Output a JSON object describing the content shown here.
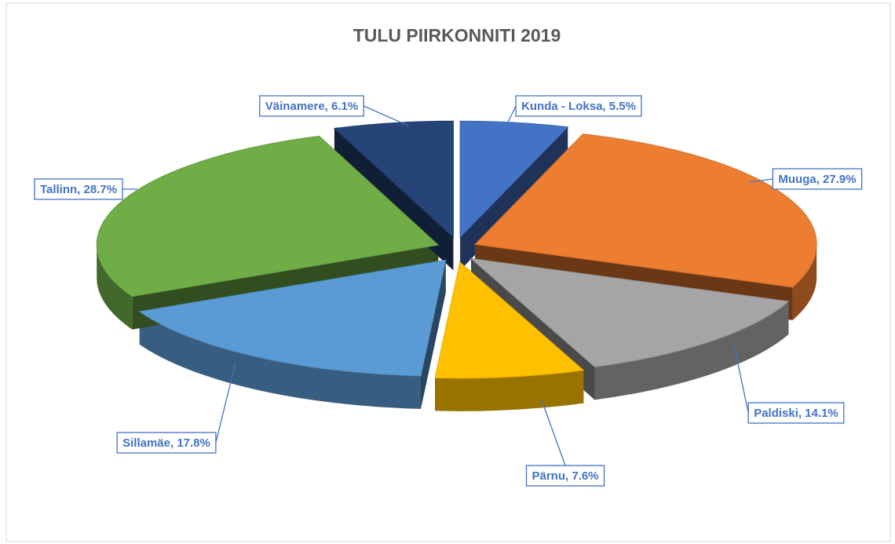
{
  "chart_data": {
    "type": "pie",
    "title": "TULU PIIRKONNITI 2019",
    "categories": [
      "Kunda - Loksa",
      "Muuga",
      "Paldiski",
      "Pärnu",
      "Sillamäe",
      "Tallinn",
      "Väinamere"
    ],
    "values": [
      5.5,
      27.9,
      14.1,
      7.6,
      17.8,
      28.7,
      6.1
    ],
    "value_labels": [
      "Kunda - Loksa, 5.5%",
      "Muuga, 27.9%",
      "Paldiski, 14.1%",
      "Pärnu, 7.6%",
      "Sillamäe, 17.8%",
      "Tallinn, 28.7%",
      "Väinamere, 6.1%"
    ],
    "colors": [
      "#4472c4",
      "#ed7d31",
      "#a5a5a5",
      "#ffc000",
      "#5b9bd5",
      "#70ad47",
      "#264478"
    ]
  }
}
